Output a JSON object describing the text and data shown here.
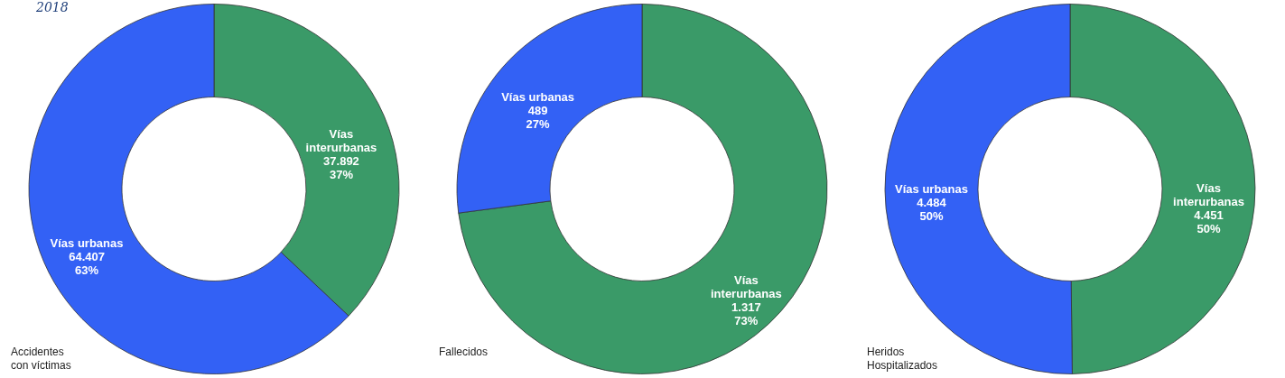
{
  "chart_data": [
    {
      "type": "donut",
      "title": "Accidentes con víctimas",
      "annotations": [
        "2018"
      ],
      "categories": [
        "Vías interurbanas",
        "Vías urbanas"
      ],
      "values": [
        37892,
        64407
      ],
      "colors": [
        "#3a9a68",
        "#3361f5"
      ],
      "value_labels": [
        "37.892\n37%",
        "64.407\n63%"
      ]
    },
    {
      "type": "donut",
      "title": "Fallecidos",
      "categories": [
        "Vías interurbanas",
        "Vías urbanas"
      ],
      "values": [
        1317,
        489
      ],
      "colors": [
        "#3a9a68",
        "#3361f5"
      ],
      "value_labels": [
        "1.317\n73%",
        "489\n27%"
      ]
    },
    {
      "type": "donut",
      "title": "Heridos Hospitalizados",
      "categories": [
        "Vías interurbanas",
        "Vías urbanas"
      ],
      "values": [
        4451,
        4484
      ],
      "colors": [
        "#3a9a68",
        "#3361f5"
      ],
      "value_labels": [
        "4.451\n50%",
        "4.484\n50%"
      ]
    }
  ]
}
